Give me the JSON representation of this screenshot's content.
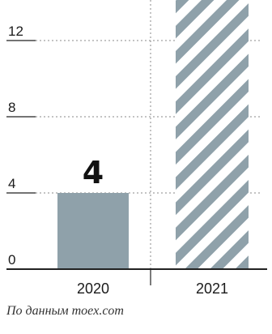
{
  "chart_data": {
    "type": "bar",
    "categories": [
      "2020",
      "2021"
    ],
    "values": [
      4,
      16
    ],
    "value_labels": [
      "4",
      ""
    ],
    "ylim": [
      0,
      14.5
    ],
    "yticks": [
      0,
      4,
      8,
      12
    ],
    "ytick_labels": [
      "0",
      "4",
      "8",
      "12"
    ],
    "grid": "horizontal dashed",
    "colors": {
      "bar_solid": "#8fa1aa",
      "bar_hatch": "#8fa1aa",
      "axis": "#222222",
      "grid": "#8a8a8a"
    },
    "bar_styles": [
      "solid",
      "hatched"
    ]
  },
  "source_note": "По данным moex.com"
}
